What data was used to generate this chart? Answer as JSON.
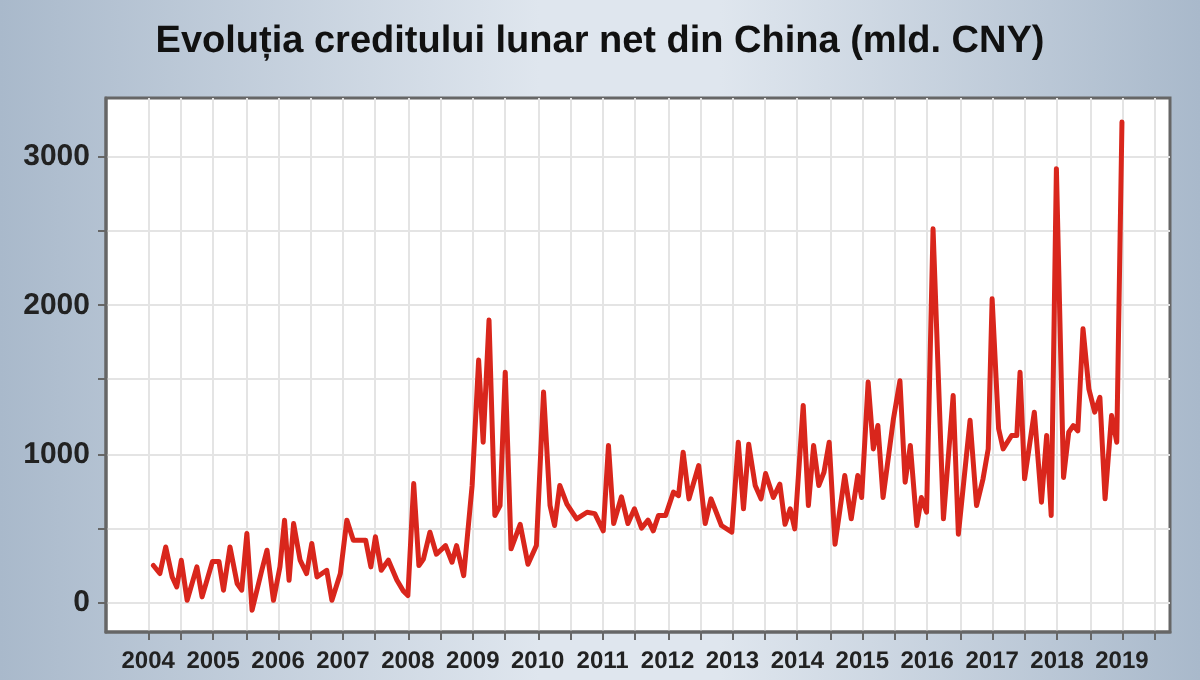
{
  "chart_data": {
    "type": "line",
    "title": "Evoluția creditului lunar net din China (mld. CNY)",
    "series": [
      {
        "color": "#d9261c",
        "x": [
          2004.08,
          2004.18,
          2004.27,
          2004.37,
          2004.44,
          2004.51,
          2004.6,
          2004.75,
          2004.83,
          2004.99,
          2005.09,
          2005.16,
          2005.26,
          2005.37,
          2005.44,
          2005.52,
          2005.6,
          2005.75,
          2005.83,
          2005.93,
          2006.03,
          2006.1,
          2006.17,
          2006.24,
          2006.34,
          2006.44,
          2006.52,
          2006.6,
          2006.75,
          2006.83,
          2006.96,
          2007.06,
          2007.16,
          2007.35,
          2007.43,
          2007.5,
          2007.59,
          2007.7,
          2007.83,
          2007.93,
          2008.0,
          2008.09,
          2008.17,
          2008.24,
          2008.34,
          2008.44,
          2008.58,
          2008.68,
          2008.75,
          2008.86,
          2008.99,
          2009.09,
          2009.16,
          2009.25,
          2009.34,
          2009.42,
          2009.5,
          2009.59,
          2009.73,
          2009.85,
          2009.98,
          2010.09,
          2010.19,
          2010.26,
          2010.34,
          2010.45,
          2010.6,
          2010.76,
          2010.88,
          2011.01,
          2011.09,
          2011.17,
          2011.29,
          2011.39,
          2011.49,
          2011.6,
          2011.7,
          2011.78,
          2011.86,
          2011.97,
          2012.09,
          2012.17,
          2012.24,
          2012.33,
          2012.48,
          2012.58,
          2012.67,
          2012.83,
          2012.99,
          2013.09,
          2013.17,
          2013.25,
          2013.35,
          2013.44,
          2013.51,
          2013.63,
          2013.73,
          2013.81,
          2013.89,
          2013.96,
          2014.09,
          2014.17,
          2014.25,
          2014.33,
          2014.41,
          2014.49,
          2014.58,
          2014.73,
          2014.83,
          2014.93,
          2014.99,
          2015.09,
          2015.17,
          2015.24,
          2015.32,
          2015.48,
          2015.58,
          2015.66,
          2015.74,
          2015.84,
          2015.91,
          2015.99,
          2016.09,
          2016.25,
          2016.4,
          2016.48,
          2016.66,
          2016.76,
          2016.86,
          2016.94,
          2017.0,
          2017.1,
          2017.17,
          2017.3,
          2017.38,
          2017.43,
          2017.5,
          2017.65,
          2017.76,
          2017.84,
          2017.91,
          2017.99,
          2018.1,
          2018.18,
          2018.25,
          2018.32,
          2018.4,
          2018.49,
          2018.58,
          2018.66,
          2018.74,
          2018.84,
          2018.92,
          2019.0
        ],
        "values": [
          247,
          193,
          372,
          170,
          103,
          282,
          13,
          238,
          36,
          274,
          274,
          81,
          372,
          126,
          81,
          462,
          -54,
          215,
          350,
          13,
          238,
          552,
          148,
          529,
          283,
          193,
          395,
          170,
          215,
          13,
          193,
          552,
          417,
          417,
          238,
          440,
          215,
          283,
          150,
          76,
          45,
          798,
          247,
          291,
          471,
          323,
          381,
          269,
          381,
          179,
          785,
          1628,
          1076,
          1897,
          583,
          650,
          1547,
          359,
          524,
          256,
          381,
          1413,
          650,
          516,
          785,
          659,
          561,
          605,
          596,
          480,
          1054,
          529,
          709,
          529,
          628,
          498,
          552,
          480,
          583,
          583,
          740,
          717,
          1009,
          695,
          919,
          529,
          695,
          516,
          471,
          1076,
          628,
          1063,
          785,
          695,
          865,
          704,
          794,
          524,
          628,
          493,
          1323,
          650,
          1054,
          785,
          874,
          1076,
          390,
          852,
          561,
          852,
          704,
          1480,
          1031,
          1188,
          704,
          1233,
          1489,
          807,
          1054,
          516,
          704,
          605,
          2511,
          561,
          1390,
          457,
          1224,
          650,
          830,
          1031,
          2040,
          1166,
          1031,
          1121,
          1121,
          1547,
          830,
          1278,
          673,
          1121,
          583,
          2915,
          839,
          1143,
          1188,
          1152,
          1839,
          1435,
          1278,
          1377,
          695,
          1256,
          1076,
          3229
        ]
      }
    ],
    "xlim": [
      2003.35,
      2019.74
    ],
    "xticks": [
      2004,
      {
        "value": 2004.5,
        "label": null
      },
      2005,
      {
        "value": 2005.5,
        "label": null
      },
      2006,
      {
        "value": 2006.5,
        "label": null
      },
      2007,
      {
        "value": 2007.5,
        "label": null
      },
      2008,
      {
        "value": 2008.5,
        "label": null
      },
      2009,
      {
        "value": 2009.5,
        "label": null
      },
      2010,
      {
        "value": 2010.5,
        "label": null
      },
      2011,
      {
        "value": 2011.5,
        "label": null
      },
      2012,
      {
        "value": 2012.5,
        "label": null
      },
      2013,
      {
        "value": 2013.5,
        "label": null
      },
      2014,
      {
        "value": 2014.5,
        "label": null
      },
      2015,
      {
        "value": 2015.5,
        "label": null
      },
      2016,
      {
        "value": 2016.5,
        "label": null
      },
      2017,
      {
        "value": 2017.5,
        "label": null
      },
      2018,
      {
        "value": 2018.5,
        "label": null
      },
      2019,
      {
        "value": 2019.5,
        "label": null
      }
    ],
    "ylim": [
      -200,
      3390
    ],
    "yticks": [
      0,
      {
        "value": 500,
        "label": null
      },
      1000,
      {
        "value": 1500,
        "label": null
      },
      2000,
      {
        "value": 2500,
        "label": null
      },
      3000
    ],
    "grid": true,
    "marker": "none",
    "line_style": "solid"
  }
}
